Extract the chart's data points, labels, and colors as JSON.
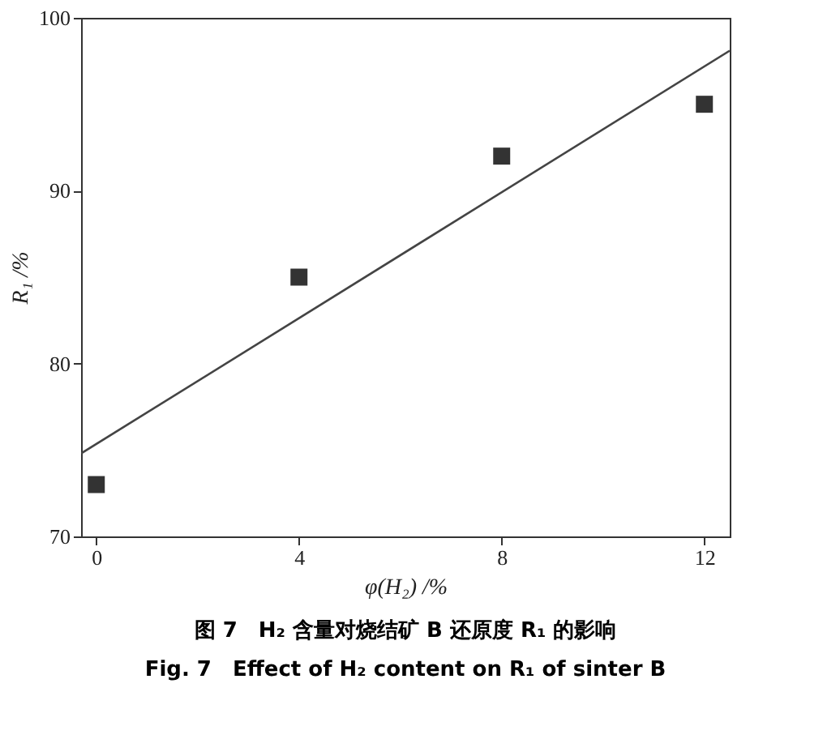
{
  "chart_data": {
    "type": "scatter",
    "xlabel": "φ(H₂) /%",
    "ylabel": "R₁ /%",
    "annotations": [
      "图 7　H₂ 含量对烧结矿 B 还原度 R₁ 的影响",
      "Fig. 7　Effect of H₂ content on R₁ of sinter B"
    ],
    "x": [
      0,
      4,
      8,
      12
    ],
    "grid": false,
    "series": [
      {
        "color": "#333333",
        "values": [
          73,
          85,
          92,
          95
        ],
        "marker": "square"
      },
      {
        "type": "line",
        "color": "#444444",
        "x": [
          -0.3,
          12.5
        ],
        "values": [
          74.8,
          98.1
        ],
        "line_style": "solid",
        "marker": "none"
      }
    ],
    "xlim": [
      -0.3,
      12.5
    ],
    "ylim": [
      70,
      100
    ],
    "xticks": [
      0,
      4,
      8,
      12
    ],
    "yticks": [
      70,
      80,
      90,
      100
    ]
  }
}
